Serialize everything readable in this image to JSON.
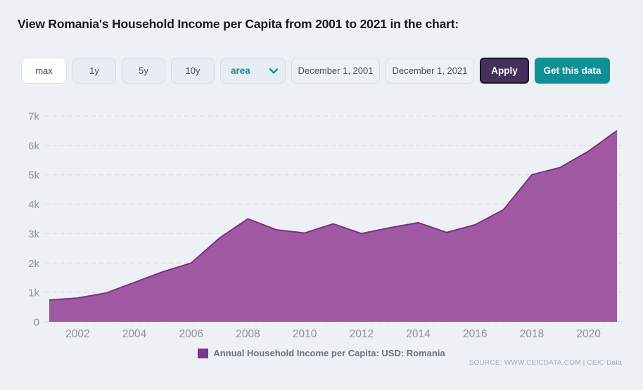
{
  "page": {
    "title": "View Romania's Household Income per Capita from 2001 to 2021 in the chart:"
  },
  "toolbar": {
    "range_buttons": [
      {
        "label": "max",
        "selected": true
      },
      {
        "label": "1y",
        "selected": false
      },
      {
        "label": "5y",
        "selected": false
      },
      {
        "label": "10y",
        "selected": false
      }
    ],
    "chart_type_select": {
      "value": "area"
    },
    "date_from": "December 1, 2001",
    "date_to": "December 1, 2021",
    "apply_label": "Apply",
    "get_data_label": "Get this data"
  },
  "chart_data": {
    "type": "area",
    "title": "",
    "xlabel": "",
    "ylabel": "",
    "x": [
      2001,
      2002,
      2003,
      2004,
      2005,
      2006,
      2007,
      2008,
      2009,
      2010,
      2011,
      2012,
      2013,
      2014,
      2015,
      2016,
      2017,
      2018,
      2019,
      2020,
      2021
    ],
    "values": [
      740,
      810,
      980,
      1340,
      1700,
      2000,
      2850,
      3500,
      3130,
      3020,
      3330,
      3000,
      3200,
      3370,
      3040,
      3300,
      3810,
      5000,
      5250,
      5800,
      6500
    ],
    "series_name": "Annual Household Income per Capita: USD: Romania",
    "ylim": [
      0,
      7000
    ],
    "ytick_values": [
      0,
      1000,
      2000,
      3000,
      4000,
      5000,
      6000,
      7000
    ],
    "ytick_labels": [
      "0",
      "1k",
      "2k",
      "3k",
      "4k",
      "5k",
      "6k",
      "7k"
    ],
    "xtick_years": [
      2002,
      2004,
      2006,
      2008,
      2010,
      2012,
      2014,
      2016,
      2018,
      2020
    ],
    "grid": "horizontal-dashed",
    "legend_position": "bottom-center"
  },
  "legend": {
    "label": "Annual Household Income per Capita: USD: Romania"
  },
  "footer": {
    "source": "SOURCE: WWW.CEICDATA.COM | CEIC Data"
  },
  "colors": {
    "page_bg": "#edf1f6",
    "accent_teal": "#0f9096",
    "apply_bg": "#45305c",
    "area_fill": "#a159a4",
    "area_stroke": "#7c2f84",
    "legend_swatch": "#7b3687",
    "grid_line": "#dce0e6",
    "tick_label": "#8d9298"
  }
}
